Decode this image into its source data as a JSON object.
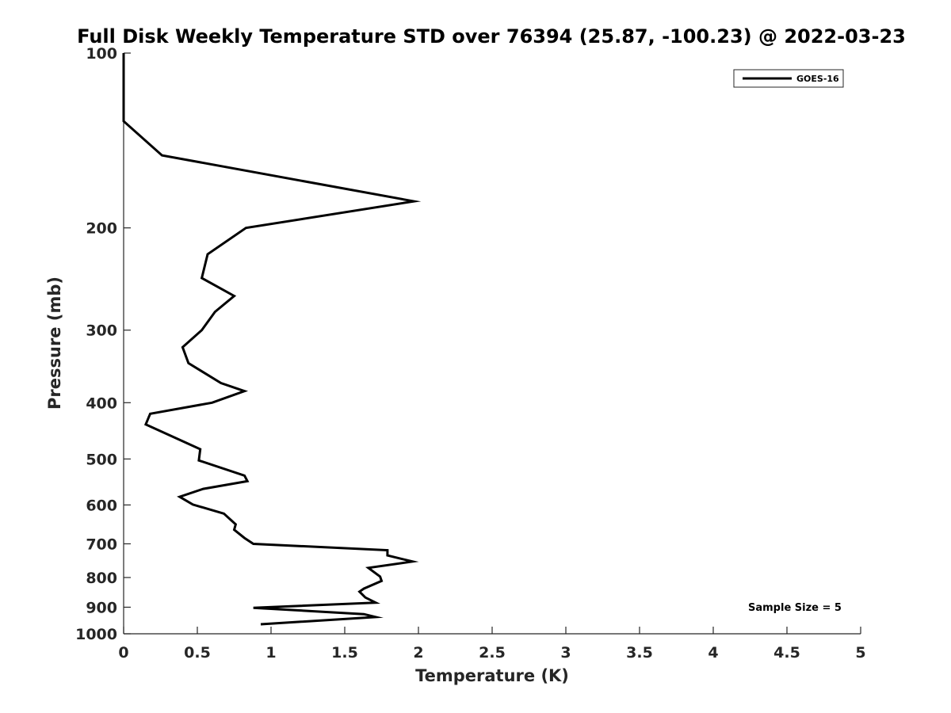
{
  "chart_data": {
    "type": "line",
    "title": "Full Disk Weekly Temperature STD over 76394 (25.87, -100.23) @ 2022-03-23",
    "xlabel": "Temperature (K)",
    "ylabel": "Pressure (mb)",
    "xlim": [
      0,
      5
    ],
    "ylim": [
      100,
      1000
    ],
    "y_scale": "log",
    "y_reversed": true,
    "grid": false,
    "legend_position": "top-right",
    "x_ticks": [
      "0",
      "0.5",
      "1",
      "1.5",
      "2",
      "2.5",
      "3",
      "3.5",
      "4",
      "4.5",
      "5"
    ],
    "y_ticks": [
      "100",
      "200",
      "300",
      "400",
      "500",
      "600",
      "700",
      "800",
      "900",
      "1000"
    ],
    "annotation": "Sample Size = 5",
    "series": [
      {
        "name": "GOES-16",
        "color": "#000000",
        "points": [
          [
            0.0,
            100
          ],
          [
            0.0,
            115
          ],
          [
            0.0,
            131
          ],
          [
            0.26,
            150
          ],
          [
            1.97,
            180
          ],
          [
            0.83,
            200
          ],
          [
            0.57,
            222
          ],
          [
            0.53,
            244
          ],
          [
            0.75,
            262
          ],
          [
            0.62,
            279
          ],
          [
            0.53,
            300
          ],
          [
            0.4,
            321
          ],
          [
            0.44,
            342
          ],
          [
            0.66,
            370
          ],
          [
            0.82,
            382
          ],
          [
            0.6,
            400
          ],
          [
            0.18,
            418
          ],
          [
            0.15,
            436
          ],
          [
            0.4,
            466
          ],
          [
            0.52,
            481
          ],
          [
            0.51,
            503
          ],
          [
            0.82,
            534
          ],
          [
            0.84,
            546
          ],
          [
            0.54,
            563
          ],
          [
            0.38,
            581
          ],
          [
            0.47,
            599
          ],
          [
            0.68,
            621
          ],
          [
            0.76,
            648
          ],
          [
            0.75,
            662
          ],
          [
            0.82,
            684
          ],
          [
            0.88,
            700
          ],
          [
            1.79,
            718
          ],
          [
            1.79,
            733
          ],
          [
            1.96,
            751
          ],
          [
            1.66,
            770
          ],
          [
            1.74,
            797
          ],
          [
            1.75,
            811
          ],
          [
            1.63,
            836
          ],
          [
            1.6,
            846
          ],
          [
            1.64,
            866
          ],
          [
            1.71,
            884
          ],
          [
            0.88,
            902
          ],
          [
            1.63,
            925
          ],
          [
            1.71,
            936
          ],
          [
            0.93,
            963
          ]
        ]
      }
    ]
  }
}
